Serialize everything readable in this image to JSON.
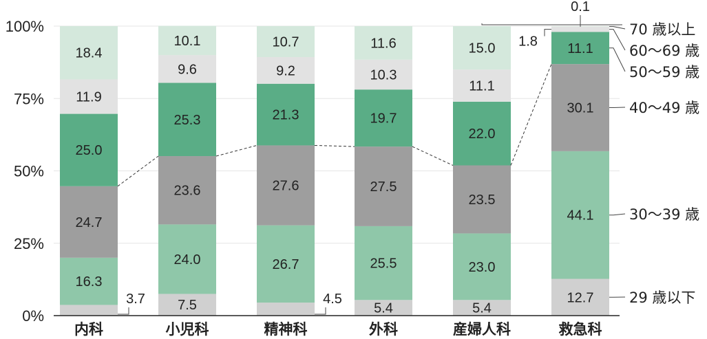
{
  "chart_data": {
    "type": "bar",
    "stacked": true,
    "percent": true,
    "categories": [
      "内科",
      "小児科",
      "精神科",
      "外科",
      "産婦人科",
      "救急科"
    ],
    "ylim": [
      0,
      100
    ],
    "yticks": [
      0,
      25,
      50,
      75,
      100
    ],
    "ytick_labels": [
      "0%",
      "25%",
      "50%",
      "75%",
      "100%"
    ],
    "grid": true,
    "legend_position": "right",
    "series": [
      {
        "name": "29 歳以下",
        "color": "#d0d0d0",
        "values": [
          3.7,
          7.5,
          4.5,
          5.4,
          5.4,
          12.7
        ],
        "labels": [
          "3.7",
          "7.5",
          "4.5",
          "5.4",
          "5.4",
          "12.7"
        ]
      },
      {
        "name": "30〜39 歳",
        "color": "#8fc7a9",
        "values": [
          16.3,
          24.0,
          26.7,
          25.5,
          23.0,
          44.1
        ],
        "labels": [
          "16.3",
          "24.0",
          "26.7",
          "25.5",
          "23.0",
          "44.1"
        ]
      },
      {
        "name": "40〜49 歳",
        "color": "#9e9e9e",
        "values": [
          24.7,
          23.6,
          27.6,
          27.5,
          23.5,
          30.1
        ],
        "labels": [
          "24.7",
          "23.6",
          "27.6",
          "27.5",
          "23.5",
          "30.1"
        ]
      },
      {
        "name": "50〜59 歳",
        "color": "#5aad86",
        "values": [
          25.0,
          25.3,
          21.3,
          19.7,
          22.0,
          11.1
        ],
        "labels": [
          "25.0",
          "25.3",
          "21.3",
          "19.7",
          "22.0",
          "11.1"
        ]
      },
      {
        "name": "60〜69 歳",
        "color": "#e2e2e2",
        "values": [
          11.9,
          9.6,
          9.2,
          10.3,
          11.1,
          1.8
        ],
        "labels": [
          "11.9",
          "9.6",
          "9.2",
          "10.3",
          "11.1",
          "1.8"
        ]
      },
      {
        "name": "70 歳以上",
        "color": "#d4e8dc",
        "values": [
          18.4,
          10.1,
          10.7,
          11.6,
          15.0,
          0.1
        ],
        "labels": [
          "18.4",
          "10.1",
          "10.7",
          "11.6",
          "15.0",
          "0.1"
        ]
      }
    ],
    "callouts": [
      {
        "series": 0,
        "category": 0,
        "side": "right"
      },
      {
        "series": 0,
        "category": 2,
        "side": "right"
      },
      {
        "series": 4,
        "category": 5,
        "side": "left"
      },
      {
        "series": 5,
        "category": 5,
        "side": "top"
      }
    ],
    "divider_line": {
      "style": "dashed",
      "boundary_after_series": 2
    }
  }
}
